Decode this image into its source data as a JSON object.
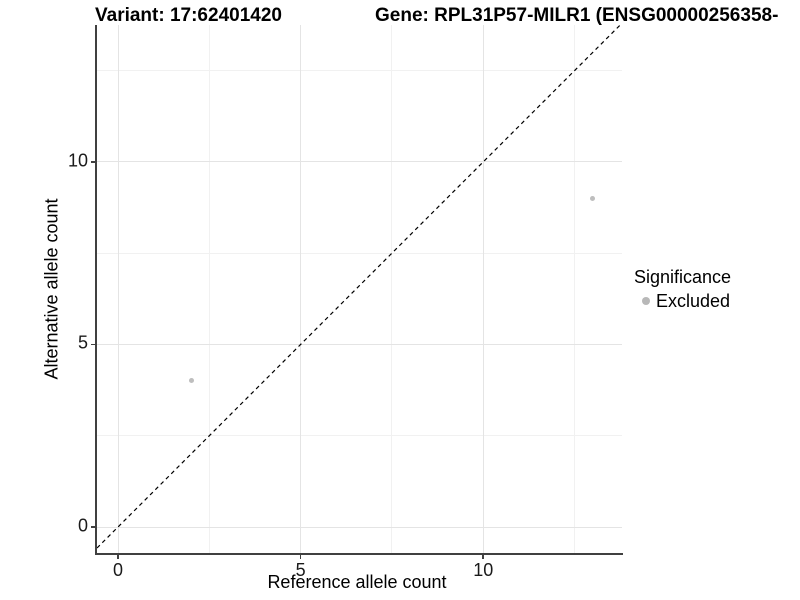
{
  "header": {
    "variant_title": "Variant: 17:62401420",
    "gene_title": "Gene: RPL31P57-MILR1 (ENSG00000256358-"
  },
  "legend": {
    "title": "Significance",
    "items": [
      {
        "label": "Excluded",
        "marker": "circle-icon",
        "color": "#bebebe"
      }
    ]
  },
  "colors": {
    "point": "#bebebe",
    "legend_key": "#b8b8b8",
    "major_grid": "#e4e4e4",
    "minor_grid": "#f1f1f1",
    "axis_line": "#404040",
    "reference_line": "#000000",
    "text": "#000000"
  },
  "chart_data": {
    "type": "scatter",
    "title_left": "Variant: 17:62401420",
    "title_right": "Gene: RPL31P57-MILR1 (ENSG00000256358-",
    "xlabel": "Reference allele count",
    "ylabel": "Alternative allele count",
    "xlim": [
      -0.575,
      13.8
    ],
    "ylim": [
      -0.712,
      13.75
    ],
    "x_major_ticks": [
      0,
      5,
      10
    ],
    "y_major_ticks": [
      0,
      5,
      10
    ],
    "x_tick_labels": [
      "0",
      "5",
      "10"
    ],
    "y_tick_labels": [
      "0",
      "5",
      "10"
    ],
    "x_minor_gridlines": [
      2.5,
      7.5,
      12.5
    ],
    "y_minor_gridlines": [
      2.5,
      7.5,
      12.5
    ],
    "grid": true,
    "legend_position": "right",
    "series": [
      {
        "name": "Excluded",
        "color": "#bebebe",
        "points": [
          {
            "x": 2,
            "y": 4
          },
          {
            "x": 13,
            "y": 9
          }
        ]
      }
    ],
    "reference_line": {
      "kind": "abline",
      "slope": 1,
      "intercept": 0,
      "style": "dashed",
      "color": "#000000"
    }
  }
}
